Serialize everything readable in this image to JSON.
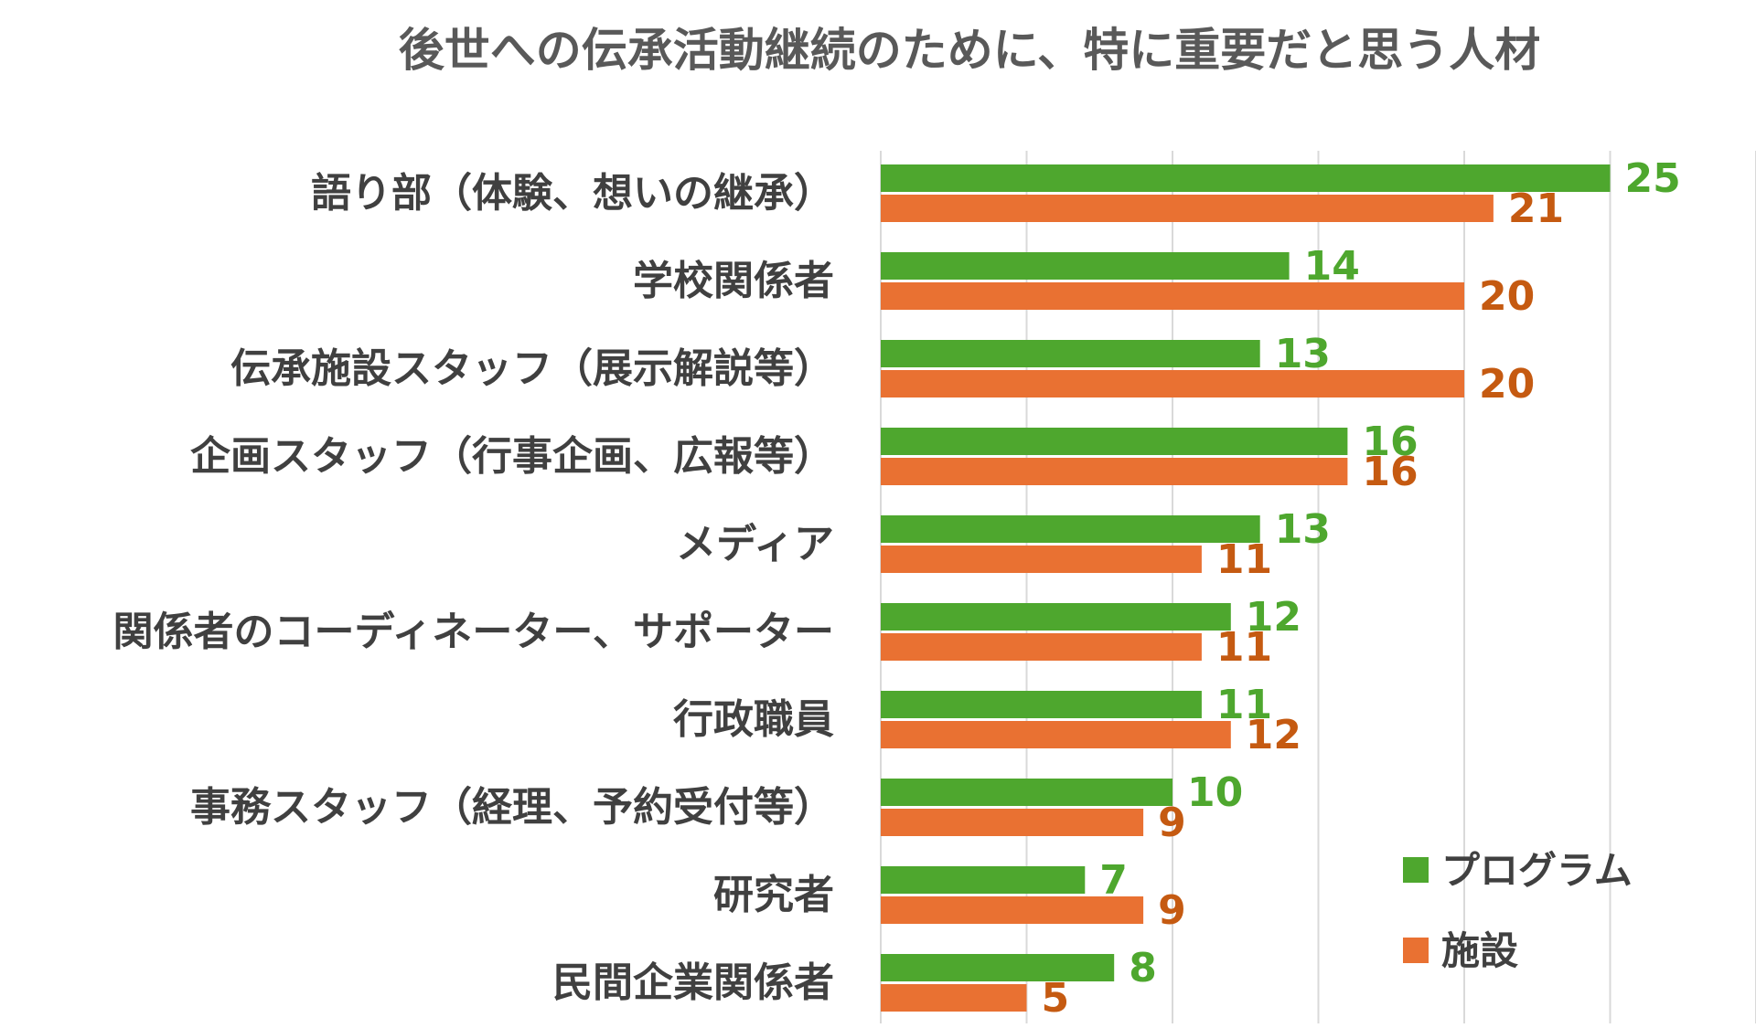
{
  "chart_data": {
    "type": "bar",
    "orientation": "horizontal",
    "title": "後世への伝承活動継続のために、特に重要だと思う人材",
    "categories": [
      "語り部（体験、想いの継承）",
      "学校関係者",
      "伝承施設スタッフ（展示解説等）",
      "企画スタッフ（行事企画、広報等）",
      "メディア",
      "関係者のコーディネーター、サポーター",
      "行政職員",
      "事務スタッフ（経理、予約受付等）",
      "研究者",
      "民間企業関係者"
    ],
    "series": [
      {
        "name": "プログラム",
        "color": "#4ea72e",
        "label_color": "#4ea72e",
        "values": [
          25,
          14,
          13,
          16,
          13,
          12,
          11,
          10,
          7,
          8
        ]
      },
      {
        "name": "施設",
        "color": "#e97132",
        "label_color": "#c55a11",
        "values": [
          21,
          20,
          20,
          16,
          11,
          11,
          12,
          9,
          9,
          5
        ]
      }
    ],
    "xlim": [
      0,
      30
    ],
    "grid": true,
    "legend_position": "bottom-right",
    "data_labels": true
  }
}
